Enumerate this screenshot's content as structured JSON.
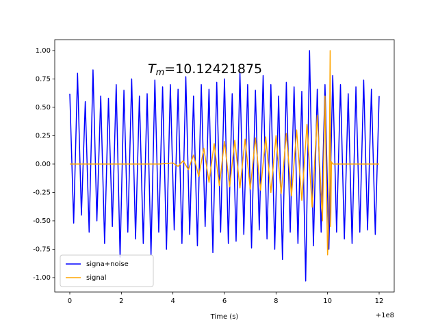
{
  "chart_data": {
    "type": "line",
    "annotation": {
      "base": "T",
      "sub": "m",
      "rest": "=10.12421875"
    },
    "xlabel": "Time (s)",
    "x_offset_label": "+1e8",
    "xlim": [
      -0.584,
      12.584
    ],
    "xticks": [
      0,
      2,
      4,
      6,
      8,
      10,
      12
    ],
    "ylim": [
      -1.127,
      1.096
    ],
    "yticks": [
      {
        "value": -1,
        "label": "-1.00"
      },
      -0.75,
      {
        "value": -0.5,
        "label": "-0.50"
      },
      -0.25,
      {
        "value": 0,
        "label": "0.00"
      },
      0.25,
      {
        "value": 0.5,
        "label": "0.50"
      },
      0.75,
      {
        "value": 1,
        "label": "1.00"
      }
    ],
    "legend": "lower left",
    "series": [
      {
        "name": "signa+noise",
        "color": "#0000ff",
        "x": [
          0,
          0.15,
          0.3,
          0.45,
          0.6,
          0.75,
          0.9,
          1.05,
          1.2,
          1.35,
          1.5,
          1.65,
          1.8,
          1.95,
          2.1,
          2.25,
          2.4,
          2.55,
          2.7,
          2.85,
          3,
          3.15,
          3.3,
          3.45,
          3.6,
          3.75,
          3.9,
          4.05,
          4.2,
          4.35,
          4.5,
          4.65,
          4.8,
          4.95,
          5.1,
          5.25,
          5.4,
          5.55,
          5.7,
          5.85,
          6,
          6.15,
          6.3,
          6.45,
          6.6,
          6.75,
          6.9,
          7.05,
          7.2,
          7.35,
          7.5,
          7.65,
          7.8,
          7.95,
          8.1,
          8.25,
          8.4,
          8.55,
          8.7,
          8.85,
          9,
          9.15,
          9.3,
          9.45,
          9.6,
          9.75,
          9.9,
          10.05,
          10.2,
          10.35,
          10.5,
          10.65,
          10.8,
          10.95,
          11.1,
          11.25,
          11.4,
          11.55,
          11.7,
          11.85,
          12
        ],
        "values": [
          0.62,
          -0.52,
          0.8,
          -0.45,
          0.55,
          -0.6,
          0.83,
          -0.5,
          0.6,
          -0.7,
          0.58,
          -0.55,
          0.7,
          -0.82,
          0.65,
          -0.6,
          0.75,
          -0.66,
          0.6,
          -0.7,
          0.62,
          -0.8,
          0.74,
          -0.6,
          0.68,
          -0.75,
          0.7,
          -0.58,
          0.66,
          -0.7,
          0.77,
          -0.62,
          0.6,
          -0.72,
          0.7,
          -0.55,
          0.66,
          -0.78,
          0.72,
          -0.6,
          0.75,
          -0.7,
          0.62,
          -0.68,
          0.8,
          -0.62,
          0.7,
          -0.74,
          0.65,
          -0.58,
          0.78,
          -0.66,
          0.7,
          -0.75,
          0.6,
          -0.84,
          0.72,
          -0.6,
          0.68,
          -0.7,
          0.64,
          -1.03,
          1.0,
          -0.72,
          0.66,
          -0.6,
          0.7,
          -0.75,
          0.78,
          -0.6,
          0.7,
          -0.66,
          0.62,
          -0.7,
          0.68,
          -0.6,
          0.74,
          -0.58,
          0.66,
          -0.62,
          0.6
        ]
      },
      {
        "name": "signal",
        "color": "#ffa500",
        "x": [
          0,
          2,
          3.5,
          4,
          4.2,
          4.4,
          4.6,
          4.8,
          5,
          5.2,
          5.4,
          5.6,
          5.8,
          6,
          6.2,
          6.4,
          6.6,
          6.8,
          7,
          7.2,
          7.4,
          7.6,
          7.8,
          8,
          8.2,
          8.4,
          8.6,
          8.8,
          9,
          9.2,
          9.4,
          9.6,
          9.8,
          9.9,
          10,
          10.05,
          10.1,
          10.12,
          10.15,
          10.2,
          12
        ],
        "values": [
          0,
          0,
          0,
          0.01,
          -0.02,
          0.03,
          -0.05,
          0.08,
          -0.11,
          0.14,
          -0.16,
          0.18,
          -0.19,
          0.2,
          -0.2,
          0.21,
          -0.21,
          0.22,
          -0.22,
          0.23,
          -0.23,
          0.24,
          -0.25,
          0.25,
          -0.26,
          0.27,
          -0.28,
          0.3,
          -0.32,
          0.35,
          -0.38,
          0.43,
          -0.5,
          0.6,
          -0.8,
          -0.5,
          1.0,
          -0.55,
          0.02,
          0,
          0
        ]
      }
    ]
  }
}
